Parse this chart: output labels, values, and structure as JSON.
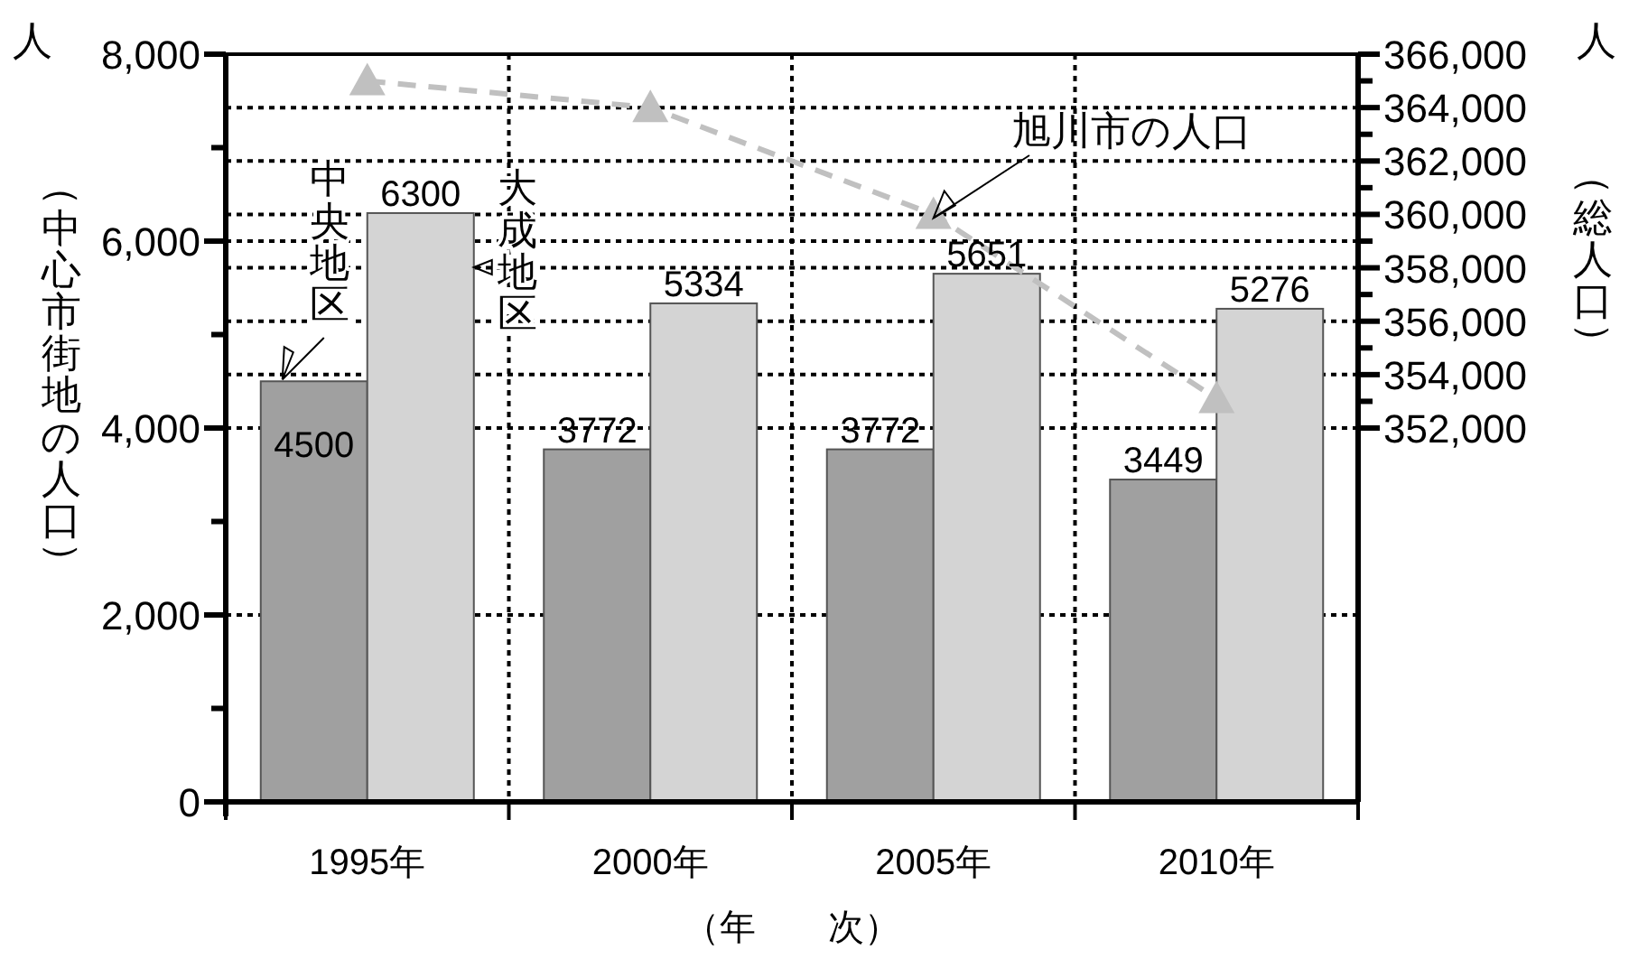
{
  "chart_data": {
    "type": "bar",
    "xlabel": "（年　　次）",
    "ylabel": "（中心市街地の人口）",
    "y2label": "（総人口）",
    "annotations": [
      "人",
      "人"
    ],
    "categories": [
      "1995年",
      "2000年",
      "2005年",
      "2010年"
    ],
    "series": [
      {
        "name": "中央地区",
        "color": "#a0a0a0",
        "values": [
          4500,
          3772,
          3772,
          3449
        ],
        "value_labels": [
          "4500",
          "3772",
          "3772",
          "3449"
        ]
      },
      {
        "name": "大成地区",
        "color": "#d4d4d4",
        "values": [
          6300,
          5334,
          5651,
          5276
        ],
        "value_labels": [
          "6300",
          "5334",
          "5651",
          "5276"
        ]
      },
      {
        "name": "旭川市の人口",
        "type": "line",
        "axis": "y2",
        "color": "#c0c0c0",
        "marker": "triangle",
        "line_style": "dashed",
        "values": [
          365000,
          364000,
          360000,
          353100
        ]
      }
    ],
    "ylim": [
      0,
      8000
    ],
    "yticks": [
      0,
      {
        "value": 1000,
        "label": null
      },
      {
        "value": 2000,
        "label": "2,000"
      },
      {
        "value": 3000,
        "label": null
      },
      {
        "value": 4000,
        "label": "4,000"
      },
      {
        "value": 5000,
        "label": null
      },
      {
        "value": 6000,
        "label": "6,000"
      },
      {
        "value": 7000,
        "label": null
      },
      {
        "value": 8000,
        "label": "8,000"
      }
    ],
    "y2lim": [
      338000,
      366000
    ],
    "y2ticks": [
      {
        "value": 352000,
        "label": "352,000"
      },
      {
        "value": 353000,
        "label": null
      },
      {
        "value": 354000,
        "label": "354,000"
      },
      {
        "value": 355000,
        "label": null
      },
      {
        "value": 356000,
        "label": "356,000"
      },
      {
        "value": 357000,
        "label": null
      },
      {
        "value": 358000,
        "label": "358,000"
      },
      {
        "value": 359000,
        "label": null
      },
      {
        "value": 360000,
        "label": "360,000"
      },
      {
        "value": 361000,
        "label": null
      },
      {
        "value": 362000,
        "label": "362,000"
      },
      {
        "value": 363000,
        "label": null
      },
      {
        "value": 364000,
        "label": "364,000"
      },
      {
        "value": 365000,
        "label": null
      },
      {
        "value": 366000,
        "label": "366,000"
      }
    ],
    "grid": true
  }
}
